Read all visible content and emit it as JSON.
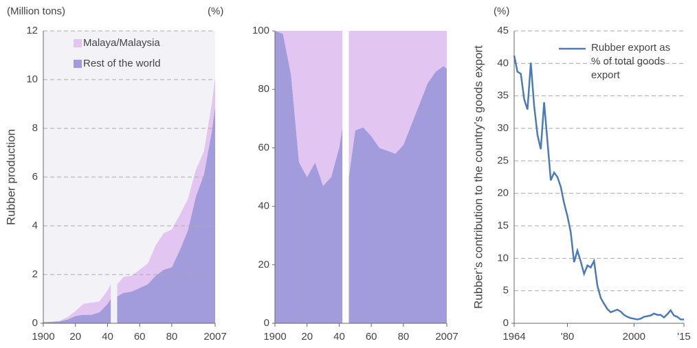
{
  "chart_data": [
    {
      "type": "area",
      "stacked": true,
      "unit_label": "(Million tons)",
      "ylabel": "Rubber production",
      "x": [
        1900,
        1905,
        1910,
        1915,
        1920,
        1925,
        1930,
        1935,
        1940,
        1942,
        1944,
        1946,
        1950,
        1955,
        1960,
        1965,
        1970,
        1975,
        1980,
        1985,
        1990,
        1995,
        2000,
        2005,
        2007
      ],
      "series": [
        {
          "name": "Rest of the world",
          "color": "#a29bdc",
          "values": [
            0.05,
            0.06,
            0.08,
            0.15,
            0.3,
            0.35,
            0.35,
            0.45,
            0.8,
            1.0,
            null,
            1.1,
            1.25,
            1.3,
            1.45,
            1.6,
            1.95,
            2.2,
            2.3,
            3.0,
            3.8,
            5.2,
            6.1,
            7.9,
            8.9
          ]
        },
        {
          "name": "Malaya/Malaysia",
          "color": "#e2c5f1",
          "values": [
            0,
            0.005,
            0.01,
            0.1,
            0.2,
            0.45,
            0.5,
            0.45,
            0.55,
            0.6,
            null,
            0.5,
            0.65,
            0.65,
            0.75,
            0.85,
            1.25,
            1.5,
            1.55,
            1.45,
            1.3,
            1.1,
            0.95,
            1.15,
            1.2
          ]
        }
      ],
      "xlim": [
        1900,
        2007
      ],
      "xticks": [
        1900,
        {
          "value": 1920,
          "label": "20"
        },
        {
          "value": 1940,
          "label": "40"
        },
        {
          "value": 1960,
          "label": "60"
        },
        {
          "value": 1980,
          "label": "80"
        },
        2007
      ],
      "ylim": [
        0,
        12
      ],
      "yticks": [
        0,
        2,
        4,
        6,
        8,
        10,
        12
      ],
      "grid": true,
      "plot_background": "#f3f2f7",
      "legend": "upper left"
    },
    {
      "type": "area",
      "stacked": true,
      "unit_label": "(%)",
      "x": [
        1900,
        1905,
        1910,
        1915,
        1920,
        1925,
        1930,
        1935,
        1940,
        1942,
        1944,
        1946,
        1950,
        1955,
        1960,
        1965,
        1970,
        1975,
        1980,
        1985,
        1990,
        1995,
        2000,
        2005,
        2007
      ],
      "series": [
        {
          "name": "Rest of the world",
          "color": "#a29bdc",
          "values": [
            100,
            99,
            85,
            55,
            50,
            55,
            47,
            50,
            60,
            67,
            null,
            50,
            66,
            67,
            64,
            60,
            59,
            58,
            61,
            68,
            75,
            82,
            86,
            88,
            87
          ]
        },
        {
          "name": "Malaya/Malaysia",
          "color": "#e2c5f1",
          "values": [
            0,
            1,
            15,
            45,
            50,
            45,
            53,
            50,
            40,
            33,
            null,
            50,
            34,
            33,
            36,
            40,
            41,
            42,
            39,
            32,
            25,
            18,
            14,
            12,
            13
          ]
        }
      ],
      "xlim": [
        1900,
        2007
      ],
      "xticks": [
        1900,
        {
          "value": 1920,
          "label": "20"
        },
        {
          "value": 1940,
          "label": "40"
        },
        {
          "value": 1960,
          "label": "60"
        },
        {
          "value": 1980,
          "label": "80"
        },
        2007
      ],
      "ylim": [
        0,
        100
      ],
      "yticks": [
        0,
        20,
        40,
        60,
        80,
        100
      ],
      "grid": false
    },
    {
      "type": "line",
      "unit_label": "(%)",
      "ylabel": "Rubber’s contribution to the country’s goods export",
      "x": [
        1964,
        1965,
        1966,
        1967,
        1968,
        1969,
        1970,
        1971,
        1972,
        1973,
        1974,
        1975,
        1976,
        1977,
        1978,
        1979,
        1980,
        1981,
        1982,
        1983,
        1984,
        1985,
        1986,
        1987,
        1988,
        1989,
        1990,
        1991,
        1992,
        1993,
        1994,
        1995,
        1996,
        1997,
        1998,
        1999,
        2000,
        2001,
        2002,
        2003,
        2004,
        2005,
        2006,
        2007,
        2008,
        2009,
        2010,
        2011,
        2012,
        2013,
        2014,
        2015
      ],
      "series": [
        {
          "name": "Rubber export as % of total goods export",
          "color": "#4a7ab8",
          "values": [
            41.2,
            38.7,
            38.4,
            34.5,
            32.9,
            40.1,
            33.5,
            29,
            26.8,
            34,
            28,
            22,
            23.2,
            22.5,
            21,
            18.5,
            16.5,
            14,
            9.4,
            11.2,
            9.5,
            7.6,
            8.9,
            8.6,
            9.6,
            5.8,
            3.9,
            3,
            2.2,
            1.7,
            1.9,
            2.1,
            1.8,
            1.3,
            1.0,
            0.8,
            0.7,
            0.6,
            0.7,
            1.0,
            1.1,
            1.2,
            1.5,
            1.3,
            1.3,
            0.9,
            1.4,
            2.0,
            1.2,
            1.0,
            0.6,
            0.6
          ]
        }
      ],
      "xlim": [
        1964,
        2015
      ],
      "xticks": [
        1964,
        {
          "value": 1980,
          "label": "'80"
        },
        2000,
        {
          "value": 2015,
          "label": "'15"
        }
      ],
      "ylim": [
        0,
        45
      ],
      "yticks": [
        0,
        5,
        10,
        15,
        20,
        25,
        30,
        35,
        40,
        45
      ],
      "grid": true,
      "legend": "upper right"
    }
  ]
}
